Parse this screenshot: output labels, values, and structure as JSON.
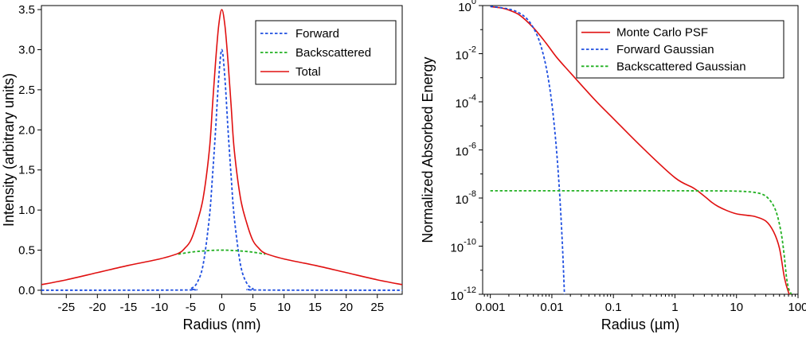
{
  "chart_data": [
    {
      "type": "line",
      "xlabel": "Radius (nm)",
      "ylabel": "Intensity (arbitrary units)",
      "xlim": [
        -29,
        29
      ],
      "ylim": [
        -0.05,
        3.55
      ],
      "x_ticks": [
        -25,
        -20,
        -15,
        -10,
        -5,
        0,
        5,
        10,
        15,
        20,
        25
      ],
      "x_tick_labels": [
        "-25",
        "-20",
        "-15",
        "-10",
        "-5",
        "0",
        "5",
        "10",
        "15",
        "20",
        "25"
      ],
      "y_ticks": [
        0,
        0.5,
        1,
        1.5,
        2,
        2.5,
        3,
        3.5
      ],
      "y_tick_labels": [
        "0.0",
        "0.5",
        "1.0",
        "1.5",
        "2.0",
        "2.5",
        "3.0",
        "3.5"
      ],
      "grid": false,
      "legend_position": "top-right",
      "series": [
        {
          "name": "Forward",
          "color": "#1f4fe0",
          "dash": true,
          "x": [
            -29,
            -6,
            -5,
            -4,
            -3,
            -2,
            -1.5,
            -1,
            -0.5,
            0,
            0.5,
            1,
            1.5,
            2,
            3,
            4,
            5,
            6,
            29
          ],
          "y": [
            0,
            0.003,
            0.02,
            0.09,
            0.32,
            0.91,
            1.42,
            2.0,
            2.64,
            3.0,
            2.64,
            2.0,
            1.42,
            0.91,
            0.32,
            0.09,
            0.02,
            0.003,
            0
          ]
        },
        {
          "name": "Backscattered",
          "color": "#22b022",
          "dash": true,
          "x": [
            -7,
            -5,
            -3,
            -1,
            0,
            1,
            3,
            5,
            7
          ],
          "y": [
            0.45,
            0.475,
            0.49,
            0.499,
            0.5,
            0.499,
            0.49,
            0.475,
            0.45
          ]
        },
        {
          "name": "Total",
          "color": "#e01010",
          "dash": false,
          "x": [
            -29,
            -25,
            -20,
            -15,
            -10,
            -7,
            -6,
            -5,
            -4,
            -3,
            -2,
            -1.5,
            -1,
            -0.5,
            0,
            0.5,
            1,
            1.5,
            2,
            3,
            4,
            5,
            6,
            7,
            10,
            15,
            20,
            25,
            29
          ],
          "y": [
            0.07,
            0.13,
            0.22,
            0.31,
            0.39,
            0.46,
            0.52,
            0.62,
            0.84,
            1.15,
            1.75,
            2.3,
            2.85,
            3.3,
            3.5,
            3.3,
            2.85,
            2.3,
            1.75,
            1.15,
            0.84,
            0.62,
            0.52,
            0.46,
            0.39,
            0.31,
            0.22,
            0.13,
            0.07
          ]
        }
      ]
    },
    {
      "type": "line",
      "xscale": "log",
      "yscale": "log",
      "xlabel": "Radius (µm)",
      "ylabel": "Normalized Absorbed Energy",
      "xlim": [
        0.00075,
        100
      ],
      "ylim": [
        1e-12,
        1
      ],
      "x_ticks": [
        0.001,
        0.01,
        0.1,
        1,
        10,
        100
      ],
      "x_tick_labels": [
        "0.001",
        "0.01",
        "0.1",
        "1",
        "10",
        "100"
      ],
      "y_ticks": [
        1,
        0.01,
        0.0001,
        1e-06,
        1e-08,
        1e-10,
        1e-12
      ],
      "y_tick_labels": [
        {
          "base": "10",
          "exp": "0"
        },
        {
          "base": "10",
          "exp": "-2"
        },
        {
          "base": "10",
          "exp": "-4"
        },
        {
          "base": "10",
          "exp": "-6"
        },
        {
          "base": "10",
          "exp": "-8"
        },
        {
          "base": "10",
          "exp": "-10"
        },
        {
          "base": "10",
          "exp": "-12"
        }
      ],
      "grid": false,
      "legend_position": "top-right",
      "series": [
        {
          "name": "Monte Carlo PSF",
          "color": "#e01010",
          "dash": false,
          "x": [
            0.001,
            0.0015,
            0.002,
            0.003,
            0.005,
            0.008,
            0.012,
            0.02,
            0.05,
            0.1,
            0.3,
            1,
            2,
            3,
            4,
            5,
            7,
            10,
            15,
            20,
            30,
            40,
            50,
            60,
            70,
            75
          ],
          "y": [
            0.9,
            0.8,
            0.65,
            0.4,
            0.12,
            0.028,
            0.007,
            0.0016,
            0.00012,
            2e-05,
            1.2e-06,
            7e-08,
            2.6e-08,
            1.2e-08,
            6.5e-09,
            4.5e-09,
            3e-09,
            2.2e-09,
            1.9e-09,
            1.7e-09,
            1.1e-09,
            4e-10,
            8e-11,
            5e-12,
            1.2e-12,
            1e-12
          ]
        },
        {
          "name": "Forward Gaussian",
          "color": "#1f4fe0",
          "dash": true,
          "x": [
            0.001,
            0.002,
            0.003,
            0.004,
            0.005,
            0.006,
            0.007,
            0.008,
            0.009,
            0.01,
            0.011,
            0.012,
            0.013,
            0.014,
            0.015,
            0.016
          ],
          "y": [
            0.92,
            0.72,
            0.48,
            0.27,
            0.12,
            0.045,
            0.013,
            0.0031,
            0.00058,
            8.4e-05,
            9e-06,
            7.5e-07,
            4.6e-08,
            2e-09,
            6e-11,
            1e-12
          ]
        },
        {
          "name": "Backscattered Gaussian",
          "color": "#22b022",
          "dash": true,
          "x": [
            0.001,
            0.1,
            1,
            5,
            10,
            15,
            20,
            25,
            30,
            35,
            40,
            45,
            50,
            55,
            60,
            65,
            70,
            75,
            78
          ],
          "y": [
            2e-08,
            2e-08,
            2e-08,
            1.98e-08,
            1.93e-08,
            1.84e-08,
            1.7e-08,
            1.5e-08,
            1.2e-08,
            8e-09,
            4.8e-09,
            2.3e-09,
            8e-10,
            2.1e-10,
            3.5e-11,
            5e-12,
            1.8e-12,
            1.2e-12,
            1e-12
          ]
        }
      ]
    }
  ]
}
